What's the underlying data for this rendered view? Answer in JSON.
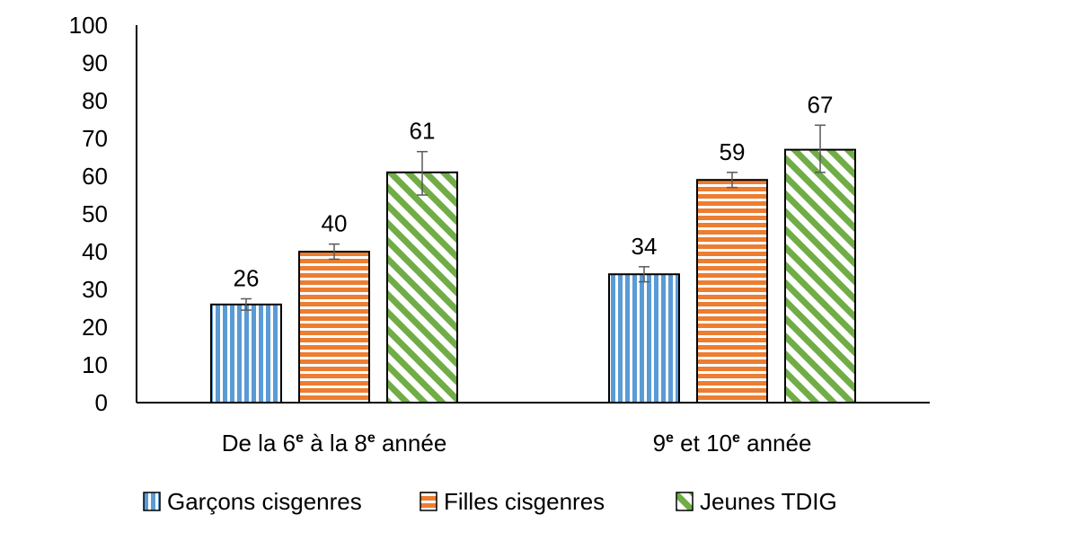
{
  "chart_data": {
    "type": "bar",
    "title": "",
    "xlabel": "",
    "ylabel": "",
    "ylim": [
      0,
      100
    ],
    "yticks": [
      0,
      10,
      20,
      30,
      40,
      50,
      60,
      70,
      80,
      90,
      100
    ],
    "grid": false,
    "legend_position": "bottom",
    "categories": [
      {
        "parts": [
          {
            "text": "De la 6",
            "sup": false
          },
          {
            "text": "e",
            "sup": true
          },
          {
            "text": " à la 8",
            "sup": false
          },
          {
            "text": "e",
            "sup": true
          },
          {
            "text": "  année",
            "sup": false
          }
        ]
      },
      {
        "parts": [
          {
            "text": "9",
            "sup": false
          },
          {
            "text": "e",
            "sup": true
          },
          {
            "text": "  et 10",
            "sup": false
          },
          {
            "text": "e",
            "sup": true
          },
          {
            "text": "  année",
            "sup": false
          }
        ]
      }
    ],
    "series": [
      {
        "name": "Garçons cisgenres",
        "values": [
          26,
          34
        ],
        "error_low": [
          24.5,
          32
        ],
        "error_high": [
          27.5,
          36
        ],
        "color": "#5B9BD5",
        "pattern": "vertical-stripes"
      },
      {
        "name": "Filles cisgenres",
        "values": [
          40,
          59
        ],
        "error_low": [
          38,
          57
        ],
        "error_high": [
          42,
          61
        ],
        "color": "#ED7D31",
        "pattern": "horizontal-stripes"
      },
      {
        "name": "Jeunes TDIG",
        "values": [
          61,
          67
        ],
        "error_low": [
          55,
          61
        ],
        "error_high": [
          66.5,
          73.5
        ],
        "color": "#70AD47",
        "pattern": "diagonal-stripes"
      }
    ]
  }
}
